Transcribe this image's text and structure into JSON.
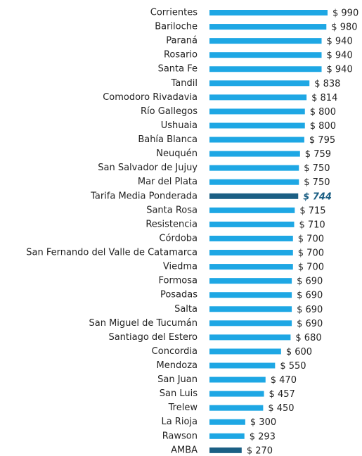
{
  "chart_data": {
    "type": "bar",
    "orientation": "horizontal",
    "categories": [
      "Corrientes",
      "Bariloche",
      "Paraná",
      "Rosario",
      "Santa Fe",
      "Tandil",
      "Comodoro Rivadavia",
      "Río Gallegos",
      "Ushuaia",
      "Bahía Blanca",
      "Neuquén",
      "San Salvador de Jujuy",
      "Mar del Plata",
      "Tarifa Media Ponderada",
      "Santa Rosa",
      "Resistencia",
      "Córdoba",
      "San Fernando del Valle de Catamarca",
      "Viedma",
      "Formosa",
      "Posadas",
      "Salta",
      "San Miguel de Tucumán",
      "Santiago del Estero",
      "Concordia",
      "Mendoza",
      "San Juan",
      "San Luis",
      "Trelew",
      "La Rioja",
      "Rawson",
      "AMBA"
    ],
    "values": [
      990,
      980,
      940,
      940,
      940,
      838,
      814,
      800,
      800,
      795,
      759,
      750,
      750,
      744,
      715,
      710,
      700,
      700,
      700,
      690,
      690,
      690,
      690,
      680,
      600,
      550,
      470,
      457,
      450,
      300,
      293,
      270
    ],
    "value_labels": [
      "$ 990",
      "$ 980",
      "$ 940",
      "$ 940",
      "$ 940",
      "$ 838",
      "$ 814",
      "$ 800",
      "$ 800",
      "$ 795",
      "$ 759",
      "$ 750",
      "$ 750",
      "$ 744",
      "$ 715",
      "$ 710",
      "$ 700",
      "$ 700",
      "$ 700",
      "$ 690",
      "$ 690",
      "$ 690",
      "$ 690",
      "$ 680",
      "$ 600",
      "$ 550",
      "$ 470",
      "$ 457",
      "$ 450",
      "$ 300",
      "$ 293",
      "$ 270"
    ],
    "colors": [
      "#1ea7e4",
      "#1ea7e4",
      "#1ea7e4",
      "#1ea7e4",
      "#1ea7e4",
      "#1ea7e4",
      "#1ea7e4",
      "#1ea7e4",
      "#1ea7e4",
      "#1ea7e4",
      "#1ea7e4",
      "#1ea7e4",
      "#1ea7e4",
      "#1b5f84",
      "#1ea7e4",
      "#1ea7e4",
      "#1ea7e4",
      "#1ea7e4",
      "#1ea7e4",
      "#1ea7e4",
      "#1ea7e4",
      "#1ea7e4",
      "#1ea7e4",
      "#1ea7e4",
      "#1ea7e4",
      "#1ea7e4",
      "#1ea7e4",
      "#1ea7e4",
      "#1ea7e4",
      "#1ea7e4",
      "#1ea7e4",
      "#1b5f84"
    ],
    "highlight": 13
  }
}
